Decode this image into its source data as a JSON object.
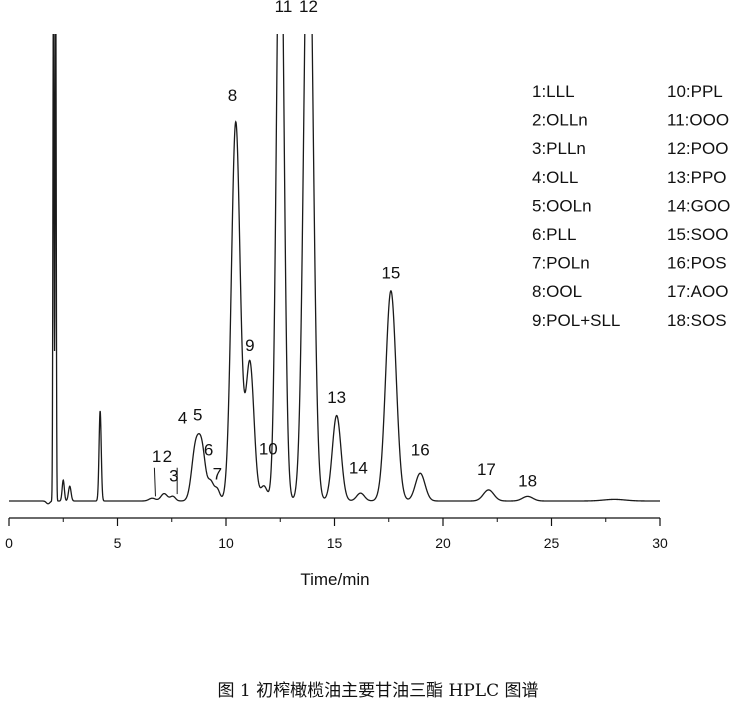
{
  "chart_data": {
    "type": "line",
    "title": "",
    "xlabel": "Time/min",
    "ylabel": "",
    "xlim": [
      0,
      30
    ],
    "ylim": [
      0,
      100
    ],
    "x_ticks": [
      0,
      5,
      10,
      15,
      20,
      25,
      30
    ],
    "grid": false,
    "colors": {
      "trace": "#1a1a1a",
      "axis": "#111111"
    },
    "series": [
      {
        "peaks": [
          {
            "x": 2.05,
            "y": 120,
            "width": 0.025
          },
          {
            "x": 2.15,
            "y": 120,
            "width": 0.025
          },
          {
            "x": 2.5,
            "y": 4.5,
            "width": 0.05
          },
          {
            "x": 2.8,
            "y": 3.2,
            "width": 0.06
          },
          {
            "x": 4.2,
            "y": 19.5,
            "width": 0.05
          },
          {
            "x": 6.6,
            "y": 0.6,
            "width": 0.15
          },
          {
            "x": 7.15,
            "y": 1.6,
            "width": 0.15
          },
          {
            "x": 7.55,
            "y": 1.0,
            "width": 0.12
          },
          {
            "x": 8.6,
            "y": 11.5,
            "width": 0.18
          },
          {
            "x": 8.9,
            "y": 10.0,
            "width": 0.16
          },
          {
            "x": 9.3,
            "y": 4.0,
            "width": 0.14
          },
          {
            "x": 9.6,
            "y": 2.4,
            "width": 0.12
          },
          {
            "x": 10.45,
            "y": 82.0,
            "width": 0.2
          },
          {
            "x": 11.1,
            "y": 30.0,
            "width": 0.19
          },
          {
            "x": 11.75,
            "y": 3.2,
            "width": 0.15
          },
          {
            "x": 12.5,
            "y": 140,
            "width": 0.17
          },
          {
            "x": 13.8,
            "y": 140,
            "width": 0.21
          },
          {
            "x": 15.1,
            "y": 18.5,
            "width": 0.2
          },
          {
            "x": 16.2,
            "y": 1.7,
            "width": 0.18
          },
          {
            "x": 17.6,
            "y": 45.5,
            "width": 0.24
          },
          {
            "x": 18.95,
            "y": 6.0,
            "width": 0.22
          },
          {
            "x": 22.1,
            "y": 2.4,
            "width": 0.24
          },
          {
            "x": 23.9,
            "y": 1.0,
            "width": 0.24
          },
          {
            "x": 27.9,
            "y": 0.35,
            "width": 0.5
          }
        ]
      }
    ],
    "peak_labels": [
      {
        "text": "1",
        "x": 6.8,
        "y": 8.4
      },
      {
        "text": "2",
        "x": 7.3,
        "y": 8.4
      },
      {
        "text": "3",
        "x": 7.6,
        "y": 4.2
      },
      {
        "text": "4",
        "x": 8.0,
        "y": 16.8
      },
      {
        "text": "5",
        "x": 8.7,
        "y": 17.4
      },
      {
        "text": "6",
        "x": 9.2,
        "y": 9.9
      },
      {
        "text": "7",
        "x": 9.6,
        "y": 4.6
      },
      {
        "text": "8",
        "x": 10.3,
        "y": 86.6
      },
      {
        "text": "9",
        "x": 11.1,
        "y": 32.5
      },
      {
        "text": "10",
        "x": 11.95,
        "y": 10.1
      },
      {
        "text": "11",
        "x": 12.65,
        "y": 105.8
      },
      {
        "text": "12",
        "x": 13.8,
        "y": 105.8
      },
      {
        "text": "13",
        "x": 15.1,
        "y": 21.2
      },
      {
        "text": "14",
        "x": 16.1,
        "y": 5.9
      },
      {
        "text": "15",
        "x": 17.6,
        "y": 48.2
      },
      {
        "text": "16",
        "x": 18.95,
        "y": 9.9
      },
      {
        "text": "17",
        "x": 22.0,
        "y": 5.6
      },
      {
        "text": "18",
        "x": 23.9,
        "y": 3.1
      }
    ],
    "peak_markers": [
      {
        "x1": 6.7,
        "y1": 7.2,
        "x2": 6.75,
        "y2": 1.0
      },
      {
        "x1": 7.75,
        "y1": 7.2,
        "x2": 7.75,
        "y2": 1.5
      }
    ],
    "legend": {
      "placement": "top-right",
      "column_1": [
        "1:LLL",
        "2:OLLn",
        "3:PLLn",
        "4:OLL",
        "5:OOLn",
        "6:PLL",
        "7:POLn",
        "8:OOL",
        "9:POL+SLL"
      ],
      "column_2": [
        "10:PPL",
        "11:OOO",
        "12:POO",
        "13:PPO",
        "14:GOO",
        "15:SOO",
        "16:POS",
        "17:AOO",
        "18:SOS"
      ]
    }
  },
  "caption": "图 1  初榨橄榄油主要甘油三酯 HPLC 图谱"
}
